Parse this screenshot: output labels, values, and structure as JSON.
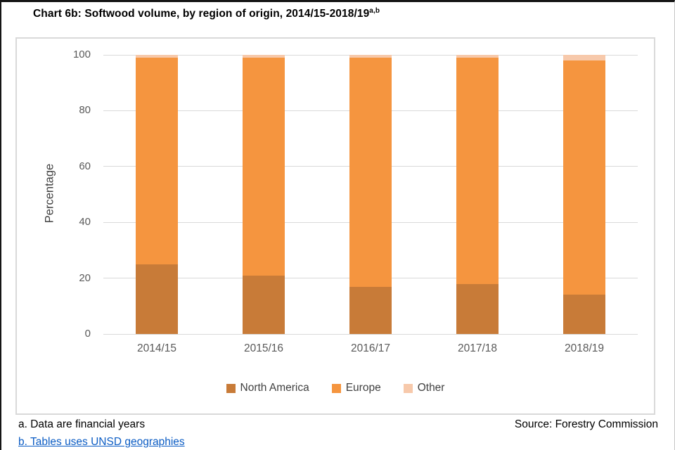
{
  "title": {
    "text": "Chart 6b: Softwood volume, by region of origin, 2014/15-2018/19",
    "superscript": "a,b"
  },
  "chart_data": {
    "type": "bar",
    "stacked": true,
    "title": "Chart 6b: Softwood volume, by region of origin, 2014/15-2018/19",
    "categories": [
      "2014/15",
      "2015/16",
      "2016/17",
      "2017/18",
      "2018/19"
    ],
    "series": [
      {
        "name": "North America",
        "color": "#C87B38",
        "values": [
          25,
          21,
          17,
          18,
          14
        ]
      },
      {
        "name": "Europe",
        "color": "#F5953F",
        "values": [
          74,
          78,
          82,
          81,
          84
        ]
      },
      {
        "name": "Other",
        "color": "#F7C9AB",
        "values": [
          1,
          1,
          1,
          1,
          2
        ]
      }
    ],
    "xlabel": "",
    "ylabel": "Percentage",
    "ylim": [
      0,
      100
    ],
    "yticks": [
      0,
      20,
      40,
      60,
      80,
      100
    ],
    "grid": true,
    "legend_position": "bottom"
  },
  "footnotes": {
    "note_a": "a. Data are financial years",
    "note_b": "b. Tables uses UNSD geographies",
    "source": "Source: Forestry Commission"
  },
  "colors": {
    "gridline": "#D9D9D9",
    "axis_text": "#595959",
    "label_text": "#404040",
    "link": "#0B5CC4",
    "frame_border": "#D9D9D9"
  }
}
